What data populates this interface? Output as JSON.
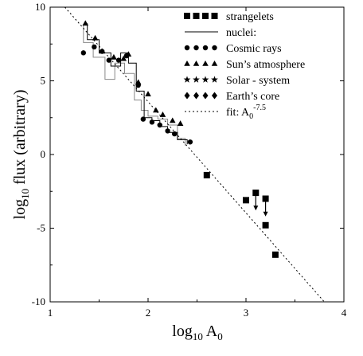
{
  "chart_data": {
    "type": "scatter",
    "xlabel_main": "log",
    "xlabel_sub": "10",
    "xlabel_rest": " A",
    "xlabel_sub2": "0",
    "ylabel_main": "log",
    "ylabel_sub": "10",
    "ylabel_rest": " flux (arbitrary)",
    "xlim": [
      1,
      4
    ],
    "ylim": [
      -10,
      10
    ],
    "xticks": [
      {
        "value": 1,
        "label": "1"
      },
      {
        "value": 2,
        "label": "2"
      },
      {
        "value": 3,
        "label": "3"
      },
      {
        "value": 4,
        "label": "4"
      }
    ],
    "yticks": [
      {
        "value": -10,
        "label": "-10"
      },
      {
        "value": -5,
        "label": "-5"
      },
      {
        "value": 0,
        "label": "0"
      },
      {
        "value": 5,
        "label": "5"
      },
      {
        "value": 10,
        "label": "10"
      }
    ],
    "legend_position": "top-right",
    "legend": [
      {
        "marker": "square",
        "label": "strangelets"
      },
      {
        "marker": "line",
        "label": "nuclei:"
      },
      {
        "marker": "circle",
        "label": "Cosmic rays"
      },
      {
        "marker": "triangle",
        "label": "Sun’s atmosphere"
      },
      {
        "marker": "star",
        "label": "Solar - system"
      },
      {
        "marker": "diamond",
        "label": "Earth’s core"
      },
      {
        "marker": "dash",
        "label": "fit: A",
        "sub": "0",
        "sup": "-7.5"
      }
    ],
    "fit_line": {
      "x": [
        1.15,
        3.8
      ],
      "y": [
        10,
        -10
      ]
    },
    "series": [
      {
        "name": "Cosmic rays",
        "marker": "circle",
        "points": [
          [
            1.34,
            6.9
          ],
          [
            1.45,
            7.3
          ],
          [
            1.53,
            7.0
          ],
          [
            1.6,
            6.4
          ],
          [
            1.7,
            6.4
          ],
          [
            1.78,
            6.7
          ],
          [
            1.9,
            4.7
          ],
          [
            1.95,
            2.4
          ],
          [
            2.04,
            2.2
          ],
          [
            2.12,
            2.0
          ],
          [
            2.2,
            1.6
          ],
          [
            2.27,
            1.4
          ],
          [
            2.43,
            0.85
          ]
        ]
      },
      {
        "name": "Sun’s atmosphere",
        "marker": "triangle",
        "points": [
          [
            1.36,
            8.9
          ],
          [
            1.46,
            7.9
          ],
          [
            1.53,
            7.0
          ],
          [
            1.65,
            6.6
          ],
          [
            1.75,
            6.5
          ],
          [
            1.8,
            6.8
          ],
          [
            1.9,
            4.9
          ],
          [
            2.0,
            4.1
          ],
          [
            2.08,
            3.0
          ],
          [
            2.15,
            2.7
          ],
          [
            2.25,
            2.3
          ],
          [
            2.33,
            2.1
          ]
        ]
      },
      {
        "name": "Strangelets",
        "marker": "square",
        "points": [
          [
            2.6,
            -1.4
          ],
          [
            3.0,
            -3.1
          ],
          [
            3.1,
            -2.6
          ],
          [
            3.2,
            -3.0
          ],
          [
            3.2,
            -4.8
          ],
          [
            3.3,
            -6.8
          ]
        ]
      }
    ],
    "upper_limit_arrows": [
      {
        "x": 3.1,
        "y_from": -2.6,
        "y_to": -3.8
      },
      {
        "x": 3.2,
        "y_from": -3.0,
        "y_to": -4.2
      }
    ],
    "step_solid": [
      [
        1.38,
        8.9
      ],
      [
        1.38,
        7.8
      ],
      [
        1.5,
        7.8
      ],
      [
        1.5,
        6.9
      ],
      [
        1.62,
        6.9
      ],
      [
        1.62,
        6.0
      ],
      [
        1.72,
        6.0
      ],
      [
        1.72,
        6.9
      ],
      [
        1.8,
        6.9
      ],
      [
        1.8,
        6.2
      ],
      [
        1.88,
        6.2
      ],
      [
        1.88,
        4.3
      ],
      [
        1.96,
        4.3
      ],
      [
        1.96,
        2.5
      ],
      [
        2.04,
        2.5
      ],
      [
        2.04,
        2.3
      ],
      [
        2.12,
        2.3
      ],
      [
        2.12,
        1.9
      ],
      [
        2.2,
        1.9
      ],
      [
        2.2,
        1.5
      ],
      [
        2.3,
        1.5
      ],
      [
        2.3,
        1.0
      ],
      [
        2.4,
        1.0
      ],
      [
        2.4,
        0.7
      ]
    ],
    "step_gray": [
      [
        1.34,
        8.8
      ],
      [
        1.34,
        7.6
      ],
      [
        1.44,
        7.6
      ],
      [
        1.44,
        6.6
      ],
      [
        1.56,
        6.6
      ],
      [
        1.56,
        5.1
      ],
      [
        1.66,
        5.1
      ],
      [
        1.66,
        6.2
      ],
      [
        1.76,
        6.2
      ],
      [
        1.76,
        5.5
      ],
      [
        1.86,
        5.5
      ],
      [
        1.86,
        3.7
      ],
      [
        1.93,
        3.7
      ],
      [
        1.93,
        3.0
      ],
      [
        2.0,
        3.0
      ],
      [
        2.0,
        2.6
      ],
      [
        2.1,
        2.6
      ],
      [
        2.1,
        2.4
      ],
      [
        2.2,
        2.4
      ],
      [
        2.2,
        2.0
      ],
      [
        2.3,
        2.0
      ],
      [
        2.3,
        1.1
      ],
      [
        2.38,
        1.1
      ],
      [
        2.38,
        0.6
      ]
    ]
  }
}
